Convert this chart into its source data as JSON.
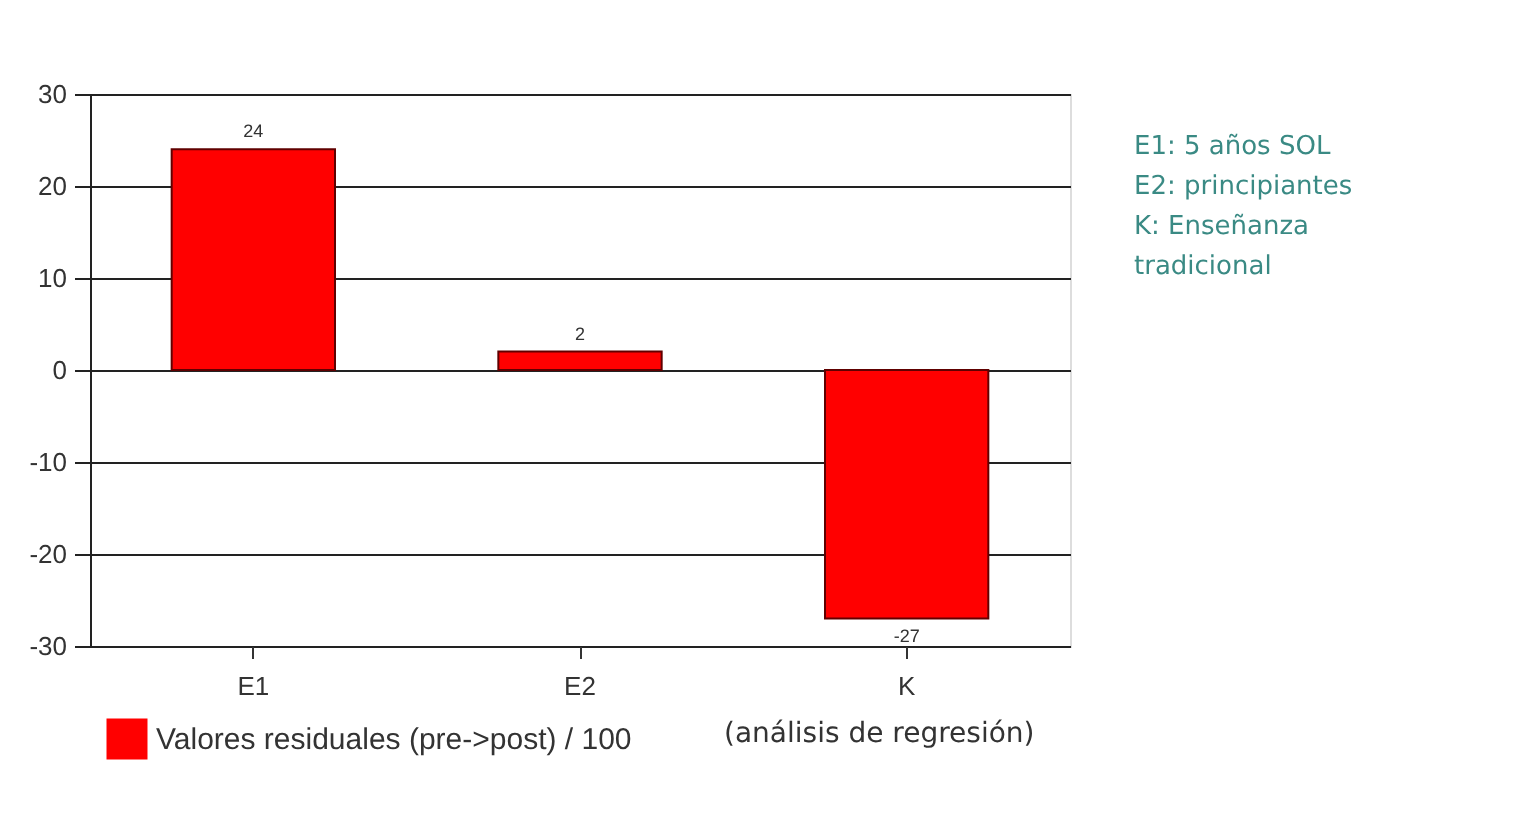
{
  "chart_data": {
    "type": "bar",
    "categories": [
      "E1",
      "E2",
      "K"
    ],
    "series": [
      {
        "name": "Valores residuales (pre->post) / 100",
        "color": "#ff0000",
        "values": [
          24,
          2,
          -27
        ]
      }
    ],
    "ylim": [
      -30,
      30
    ],
    "yticks": [
      -30,
      -20,
      -10,
      0,
      10,
      20,
      30
    ],
    "grid": "y",
    "legend": "bottom",
    "data_labels": true,
    "annotations": [
      "E1: 5 años SOL",
      "E2: principiantes",
      "K:   Enseñanza\n       tradicional",
      "(análisis de regresión)"
    ]
  }
}
